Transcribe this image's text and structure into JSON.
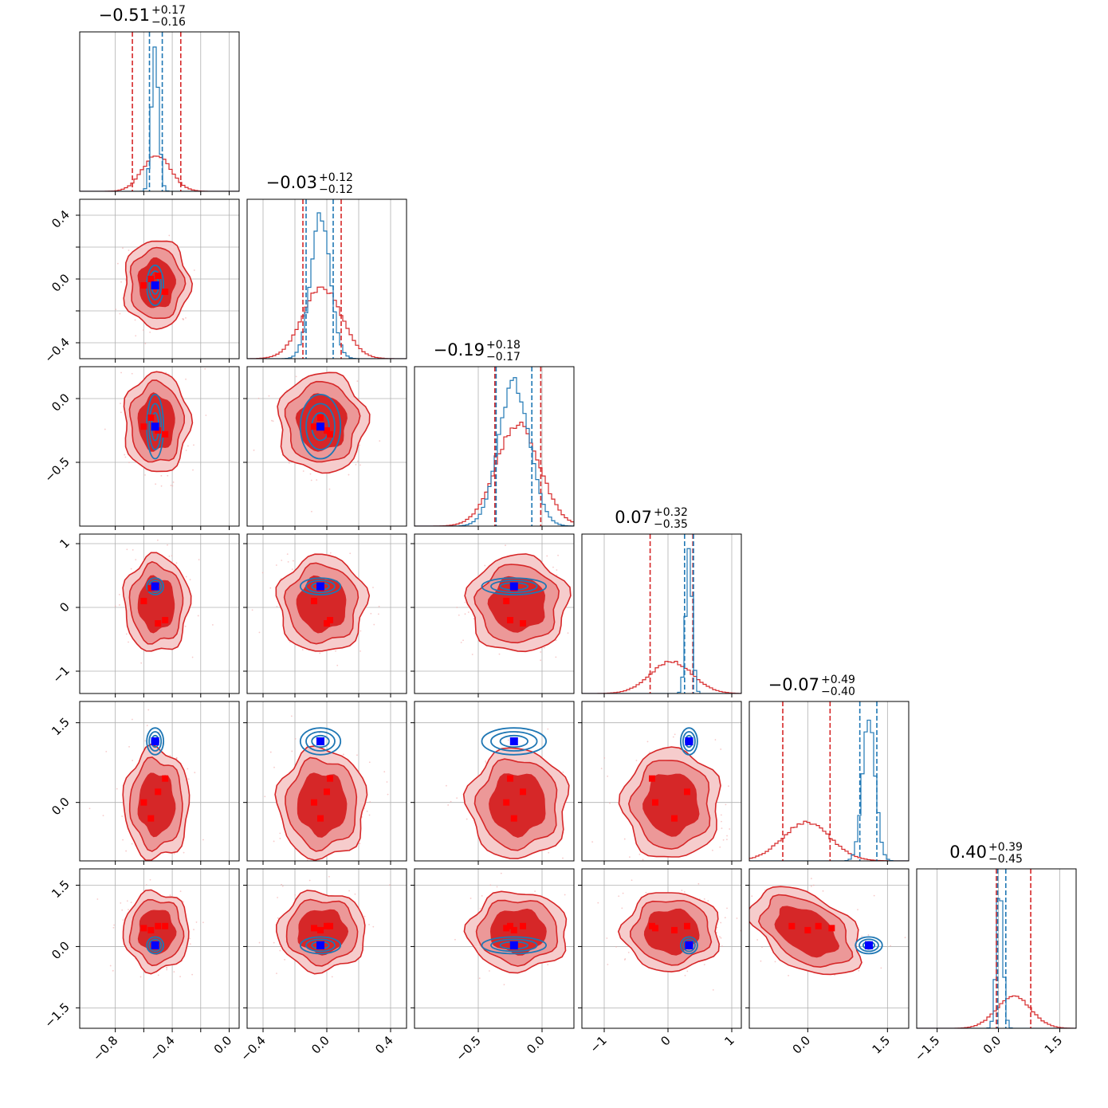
{
  "chart_data": {
    "type": "corner",
    "params": [
      {
        "median": -0.51,
        "plus": "+0.17",
        "minus": "−0.16",
        "range": [
          -1.05,
          0.07
        ],
        "ticks": [
          -0.8,
          -0.6,
          -0.4,
          -0.2,
          0.0
        ],
        "tick_labels": [
          "−0.8",
          "−0.4",
          "0.0"
        ],
        "wide_sd": 0.1,
        "narrow_sd": 0.025,
        "narrow_mean": -0.52,
        "wide_q": [
          -0.68,
          -0.34
        ],
        "narrow_q": [
          -0.56,
          -0.47
        ],
        "truth": -0.52,
        "red_pts": [
          -0.6,
          -0.55,
          -0.5,
          -0.45
        ]
      },
      {
        "median": "−0.03",
        "plus": "+0.12",
        "minus": "−0.12",
        "range": [
          -0.5,
          0.5
        ],
        "ticks": [
          -0.4,
          -0.2,
          0.0,
          0.2,
          0.4
        ],
        "tick_labels": [
          "−0.4",
          "0.0",
          "0.4"
        ],
        "wide_sd": 0.12,
        "narrow_sd": 0.06,
        "narrow_mean": -0.04,
        "wide_q": [
          -0.15,
          0.09
        ],
        "narrow_q": [
          -0.13,
          0.04
        ],
        "truth": -0.04,
        "red_pts": [
          -0.08,
          -0.04,
          0.0,
          0.02
        ]
      },
      {
        "median": "−0.19",
        "plus": "+0.18",
        "minus": "−0.17",
        "range": [
          -1.0,
          0.25
        ],
        "ticks": [
          -0.5,
          0.0
        ],
        "tick_labels": [
          "−0.5",
          "0.0"
        ],
        "wide_sd": 0.17,
        "narrow_sd": 0.12,
        "narrow_mean": -0.22,
        "wide_q": [
          -0.37,
          -0.01
        ],
        "narrow_q": [
          -0.36,
          -0.08
        ],
        "truth": -0.22,
        "red_pts": [
          -0.28,
          -0.22,
          -0.15,
          -0.25
        ]
      },
      {
        "median": "0.07",
        "plus": "+0.32",
        "minus": "−0.35",
        "range": [
          -1.35,
          1.15
        ],
        "ticks": [
          -1,
          0,
          1
        ],
        "tick_labels": [
          "−1",
          "0",
          "1"
        ],
        "wide_sd": 0.33,
        "narrow_sd": 0.05,
        "narrow_mean": 0.33,
        "wide_q": [
          -0.28,
          0.39
        ],
        "narrow_q": [
          0.26,
          0.4
        ],
        "truth": 0.33,
        "red_pts": [
          -0.2,
          0.1,
          0.3,
          -0.25
        ]
      },
      {
        "median": "−0.07",
        "plus": "+0.49",
        "minus": "−0.40",
        "range": [
          -1.1,
          1.9
        ],
        "ticks": [
          0.0,
          1.5
        ],
        "tick_labels": [
          "0.0",
          "1.5"
        ],
        "wide_sd": 0.45,
        "narrow_sd": 0.12,
        "narrow_mean": 1.15,
        "wide_q": [
          -0.47,
          0.42
        ],
        "narrow_q": [
          0.98,
          1.3
        ],
        "truth": 1.15,
        "red_pts": [
          0.45,
          0.0,
          -0.3,
          0.2
        ]
      },
      {
        "median": "0.40",
        "plus": "+0.39",
        "minus": "−0.45",
        "range": [
          -2.0,
          1.9
        ],
        "ticks": [
          -1.5,
          0.0,
          1.5
        ],
        "tick_labels": [
          "−1.5",
          "0.0",
          "1.5"
        ],
        "wide_sd": 0.42,
        "narrow_sd": 0.08,
        "narrow_mean": 0.03,
        "wide_q": [
          -0.05,
          0.79
        ],
        "narrow_q": [
          -0.02,
          0.18
        ],
        "truth": 0.03,
        "red_pts": [
          0.5,
          0.45,
          0.4,
          0.5
        ]
      }
    ],
    "titles": [
      {
        "value": "−0.51",
        "plus": "+0.17",
        "minus": "−0.16"
      },
      {
        "value": "−0.03",
        "plus": "+0.12",
        "minus": "−0.12"
      },
      {
        "value": "−0.19",
        "plus": "+0.18",
        "minus": "−0.17"
      },
      {
        "value": "0.07",
        "plus": "+0.32",
        "minus": "−0.35"
      },
      {
        "value": "−0.07",
        "plus": "+0.49",
        "minus": "−0.40"
      },
      {
        "value": "0.40",
        "plus": "+0.39",
        "minus": "−0.45"
      }
    ],
    "y_tick_labels": [
      null,
      {
        "ticks": [
          0.4,
          0.0,
          -0.4
        ],
        "labels": [
          "0.4",
          "0.0",
          "−0.4"
        ]
      },
      {
        "ticks": [
          0.0,
          -0.5
        ],
        "labels": [
          "0.0",
          "−0.5"
        ]
      },
      {
        "ticks": [
          1,
          0,
          -1
        ],
        "labels": [
          "1",
          "0",
          "−1"
        ]
      },
      {
        "ticks": [
          1.5,
          0.0
        ],
        "labels": [
          "1.5",
          "0.0"
        ]
      },
      {
        "ticks": [
          1.5,
          0.0,
          -1.5
        ],
        "labels": [
          "1.5",
          "0.0",
          "−1.5"
        ]
      }
    ],
    "series": [
      {
        "color": "#d62728"
      },
      {
        "color": "#1f77b4"
      }
    ],
    "truth_marker_color": "#0000ff",
    "sample_marker_color": "#ff0000",
    "grid": true
  }
}
